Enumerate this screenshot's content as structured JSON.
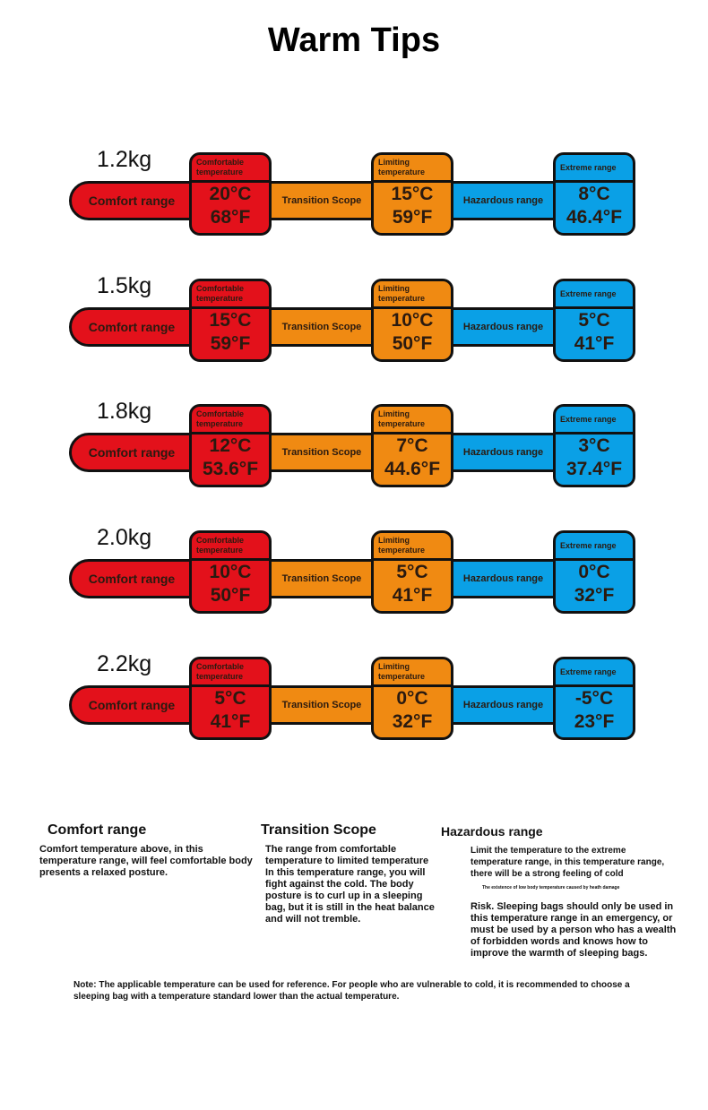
{
  "title": "Warm Tips",
  "labels": {
    "comfort_range": "Comfort range",
    "transition": "Transition Scope",
    "hazardous": "Hazardous range",
    "comfortable_temp": "Comfortable temperature",
    "limiting_temp": "Limiting temperature",
    "extreme_range": "Extreme range"
  },
  "colors": {
    "comfort": "#e3111b",
    "transition": "#f08a12",
    "hazard": "#0aa0e6"
  },
  "rows": [
    {
      "weight": "1.2kg",
      "comfort_c": "20°C",
      "comfort_f": "68°F",
      "limit_c": "15°C",
      "limit_f": "59°F",
      "extreme_c": "8°C",
      "extreme_f": "46.4°F"
    },
    {
      "weight": "1.5kg",
      "comfort_c": "15°C",
      "comfort_f": "59°F",
      "limit_c": "10°C",
      "limit_f": "50°F",
      "extreme_c": "5°C",
      "extreme_f": "41°F"
    },
    {
      "weight": "1.8kg",
      "comfort_c": "12°C",
      "comfort_f": "53.6°F",
      "limit_c": "7°C",
      "limit_f": "44.6°F",
      "extreme_c": "3°C",
      "extreme_f": "37.4°F"
    },
    {
      "weight": "2.0kg",
      "comfort_c": "10°C",
      "comfort_f": "50°F",
      "limit_c": "5°C",
      "limit_f": "41°F",
      "extreme_c": "0°C",
      "extreme_f": "32°F"
    },
    {
      "weight": "2.2kg",
      "comfort_c": "5°C",
      "comfort_f": "41°F",
      "limit_c": "0°C",
      "limit_f": "32°F",
      "extreme_c": "-5°C",
      "extreme_f": "23°F"
    }
  ],
  "explanations": {
    "comfort": {
      "heading": "Comfort range",
      "text": "Comfort temperature above, in this temperature range, will feel comfortable body presents a relaxed posture."
    },
    "transition": {
      "heading": "Transition Scope",
      "text": "The range from comfortable temperature to limited temperature In this temperature range, you will fight against the cold. The body posture is to curl up in a sleeping bag, but it is still in the heat balance and will not tremble."
    },
    "hazard": {
      "heading": "Hazardous range",
      "text1": "Limit the temperature to the extreme temperature range, in this temperature range, there will be a strong feeling of cold",
      "small": "The existence of low body temperature caused by heath damage",
      "text2": "Risk. Sleeping bags should only be used in this temperature range in an emergency, or must be used by a person who has a wealth of forbidden words and knows how to improve the warmth of sleeping bags."
    }
  },
  "note": "Note: The applicable temperature can be used for reference. For people who are vulnerable to cold, it is recommended to choose a sleeping bag with a temperature standard lower than the actual temperature."
}
